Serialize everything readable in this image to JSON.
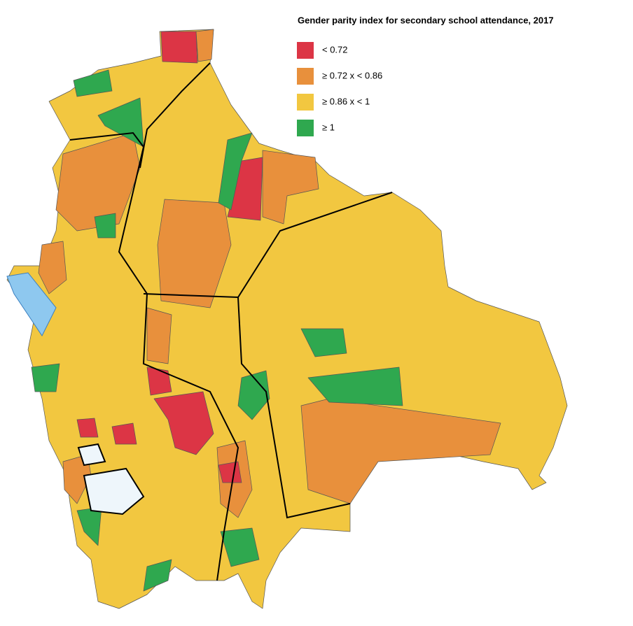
{
  "legend": {
    "title": "Gender parity index for secondary school attendance, 2017",
    "items": [
      {
        "label": "< 0.72",
        "color": "#dc3545"
      },
      {
        "label": "≥ 0.72 x < 0.86",
        "color": "#e8903c"
      },
      {
        "label": "≥ 0.86 x < 1",
        "color": "#f2c740"
      },
      {
        "label": "≥ 1",
        "color": "#2fa84f"
      }
    ]
  }
}
